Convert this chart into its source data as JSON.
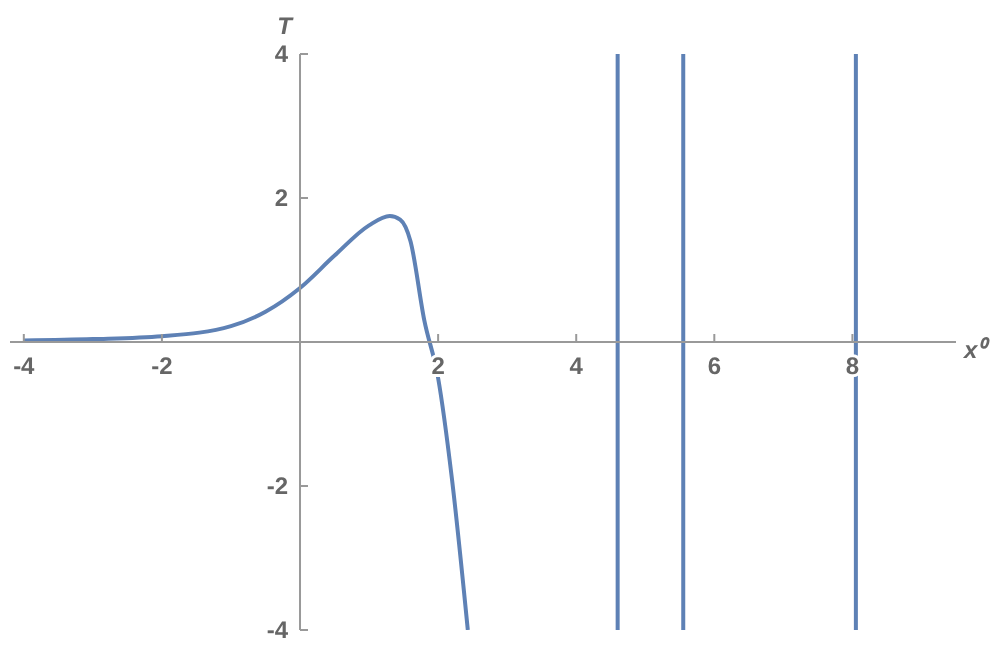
{
  "chart_data": {
    "type": "line",
    "xlabel": "x⁰",
    "ylabel": "T",
    "series": [
      {
        "color": "#5e81b5",
        "x": [
          -4,
          -3,
          -2,
          -1,
          -0.5,
          0,
          0.5,
          1,
          1.3,
          1.45,
          1.6,
          1.8,
          2,
          2.2,
          2.43,
          null,
          4.6,
          4.6,
          null,
          5.55,
          5.55,
          null,
          8.05,
          8.05
        ],
        "values": [
          0.02,
          0.04,
          0.08,
          0.22,
          0.42,
          0.75,
          1.2,
          1.62,
          1.75,
          1.7,
          1.4,
          0.3,
          -0.5,
          -1.9,
          -4,
          null,
          4,
          -4,
          null,
          4,
          -4,
          null,
          4,
          -4
        ]
      }
    ],
    "xlim": [
      -4.2,
      9.5
    ],
    "ylim": [
      -4,
      4
    ],
    "xticks": [
      -4,
      -2,
      2,
      4,
      6,
      8
    ],
    "yticks": [
      -4,
      -2,
      2,
      4
    ],
    "grid": false,
    "legend": false,
    "marker": "none",
    "line_style": "solid"
  }
}
